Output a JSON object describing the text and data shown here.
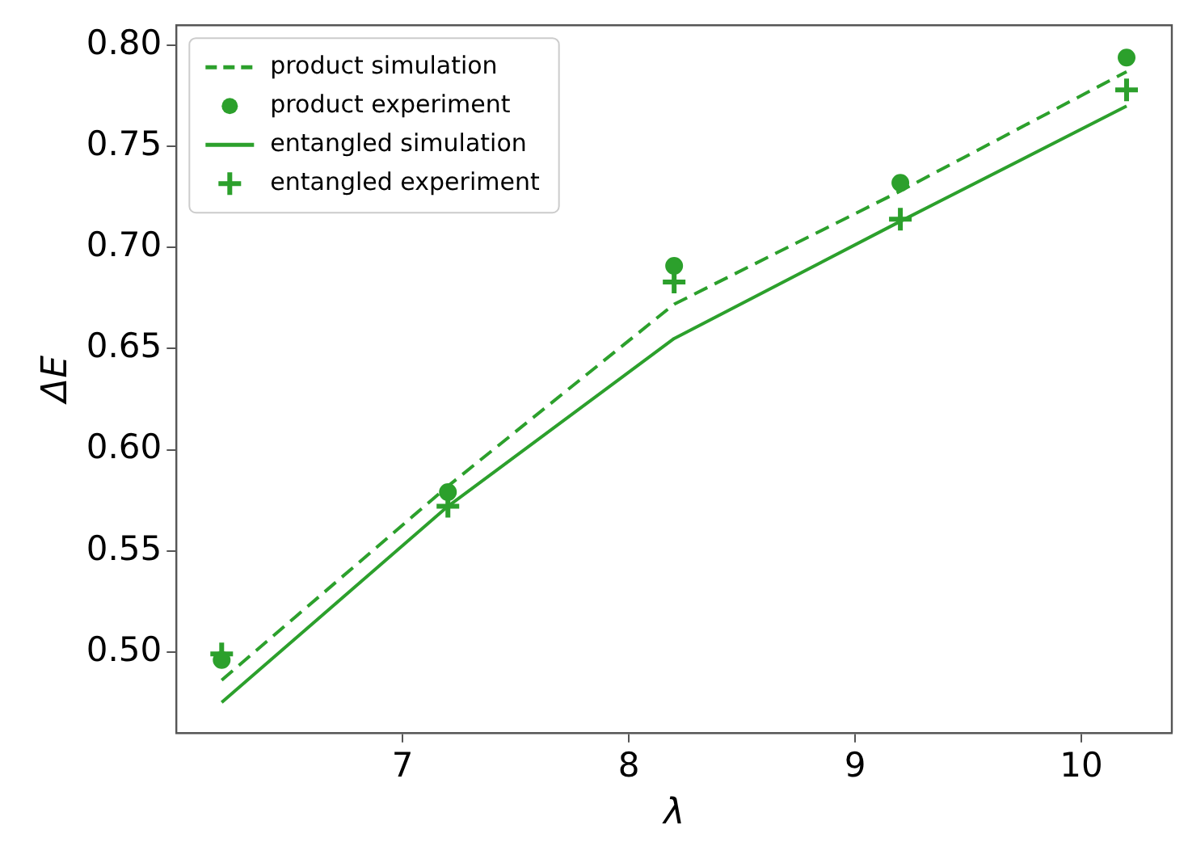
{
  "chart_data": {
    "type": "line",
    "xlabel": "λ",
    "ylabel": "ΔE",
    "xlim": [
      6.0,
      10.4
    ],
    "xticks": [
      7,
      8,
      9,
      10
    ],
    "ylim": [
      0.46,
      0.81
    ],
    "yticks": [
      {
        "value": 0.5,
        "label": "0.50"
      },
      0.55,
      {
        "value": 0.6,
        "label": "0.60"
      },
      0.65,
      {
        "value": 0.7,
        "label": "0.70"
      },
      0.75,
      {
        "value": 0.8,
        "label": "0.80"
      }
    ],
    "grid": false,
    "legend": "top left",
    "series": [
      {
        "name": "product simulation",
        "color": "#2ca02c",
        "line_style": "dashed",
        "marker": "none",
        "x": [
          6.2,
          7.2,
          8.2,
          9.2,
          10.2
        ],
        "values": [
          0.486,
          0.582,
          0.672,
          0.728,
          0.787
        ]
      },
      {
        "name": "product experiment",
        "type": "scatter",
        "color": "#2ca02c",
        "marker": "circle",
        "x": [
          6.2,
          7.2,
          8.2,
          9.2,
          10.2
        ],
        "values": [
          0.496,
          0.579,
          0.691,
          0.732,
          0.794
        ]
      },
      {
        "name": "entangled simulation",
        "color": "#2ca02c",
        "line_style": "solid",
        "marker": "none",
        "x": [
          6.2,
          7.2,
          8.2,
          9.2,
          10.2
        ],
        "values": [
          0.475,
          0.572,
          0.655,
          0.713,
          0.77
        ]
      },
      {
        "name": "entangled experiment",
        "type": "scatter",
        "color": "#2ca02c",
        "marker": "cross",
        "x": [
          6.2,
          7.2,
          8.2,
          9.2,
          10.2
        ],
        "values": [
          0.499,
          0.572,
          0.683,
          0.714,
          0.778
        ]
      }
    ]
  }
}
